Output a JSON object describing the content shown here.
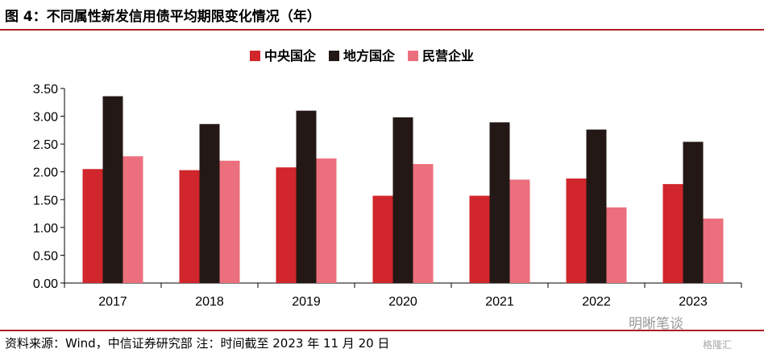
{
  "figure": {
    "title": "图 4：不同属性新发信用债平均期限变化情况（年）",
    "source": "资料来源：Wind，中信证券研究部 注：时间截至 2023 年 11 月 20 日",
    "watermark": "明晰笔谈",
    "watermark2": "格隆汇"
  },
  "colors": {
    "rule": "#b01d22",
    "series": [
      "#d0262c",
      "#231815",
      "#ec6f7d"
    ]
  },
  "chart_data": {
    "type": "bar",
    "title": "",
    "xlabel": "",
    "ylabel": "",
    "categories": [
      "2017",
      "2018",
      "2019",
      "2020",
      "2021",
      "2022",
      "2023"
    ],
    "series": [
      {
        "name": "中央国企",
        "values": [
          2.05,
          2.03,
          2.08,
          1.57,
          1.57,
          1.88,
          1.78
        ]
      },
      {
        "name": "地方国企",
        "values": [
          3.36,
          2.86,
          3.1,
          2.98,
          2.89,
          2.76,
          2.54
        ]
      },
      {
        "name": "民营企业",
        "values": [
          2.28,
          2.2,
          2.24,
          2.14,
          1.86,
          1.36,
          1.16
        ]
      }
    ],
    "ylim": [
      0,
      3.5
    ],
    "yticks": [
      "0.00",
      "0.50",
      "1.00",
      "1.50",
      "2.00",
      "2.50",
      "3.00",
      "3.50"
    ],
    "grid": false,
    "legend_position": "top-center"
  }
}
